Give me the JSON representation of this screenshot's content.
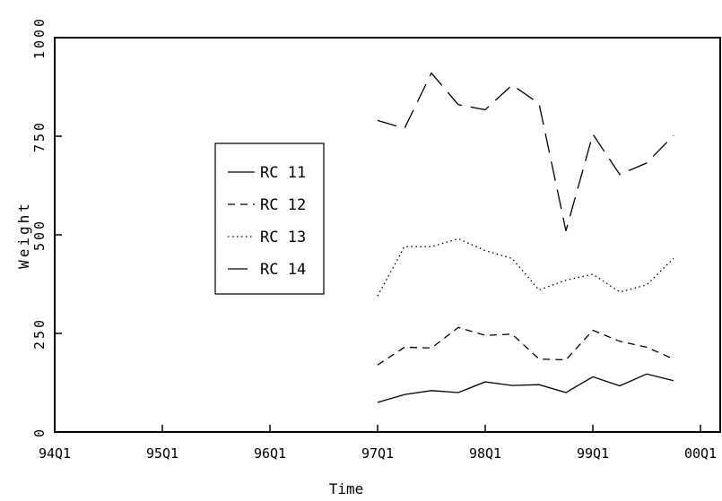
{
  "chart_data": {
    "type": "line",
    "title": "",
    "xlabel": "Time",
    "ylabel": "Weight",
    "x_tick_labels": [
      "94Q1",
      "95Q1",
      "96Q1",
      "97Q1",
      "98Q1",
      "99Q1",
      "00Q1"
    ],
    "y_ticks": [
      0,
      250,
      500,
      750,
      1000
    ],
    "ylim": [
      0,
      1000
    ],
    "x": [
      "97Q1",
      "97Q2",
      "97Q3",
      "97Q4",
      "98Q1",
      "98Q2",
      "98Q3",
      "98Q4",
      "99Q1",
      "99Q2",
      "99Q3",
      "99Q4"
    ],
    "grid": false,
    "legend_position": "left-center",
    "series": [
      {
        "name": "RC 11",
        "dash": "solid",
        "values": [
          75,
          95,
          105,
          100,
          127,
          118,
          120,
          100,
          140,
          117,
          147,
          130
        ]
      },
      {
        "name": "RC 12",
        "dash": "dashed",
        "values": [
          170,
          215,
          213,
          265,
          245,
          248,
          185,
          183,
          258,
          230,
          215,
          185
        ]
      },
      {
        "name": "RC 13",
        "dash": "dotted",
        "values": [
          345,
          470,
          470,
          490,
          460,
          440,
          360,
          385,
          400,
          355,
          373,
          440
        ]
      },
      {
        "name": "RC 14",
        "dash": "longdash",
        "values": [
          790,
          770,
          910,
          830,
          817,
          880,
          833,
          510,
          755,
          653,
          682,
          752
        ]
      }
    ]
  }
}
